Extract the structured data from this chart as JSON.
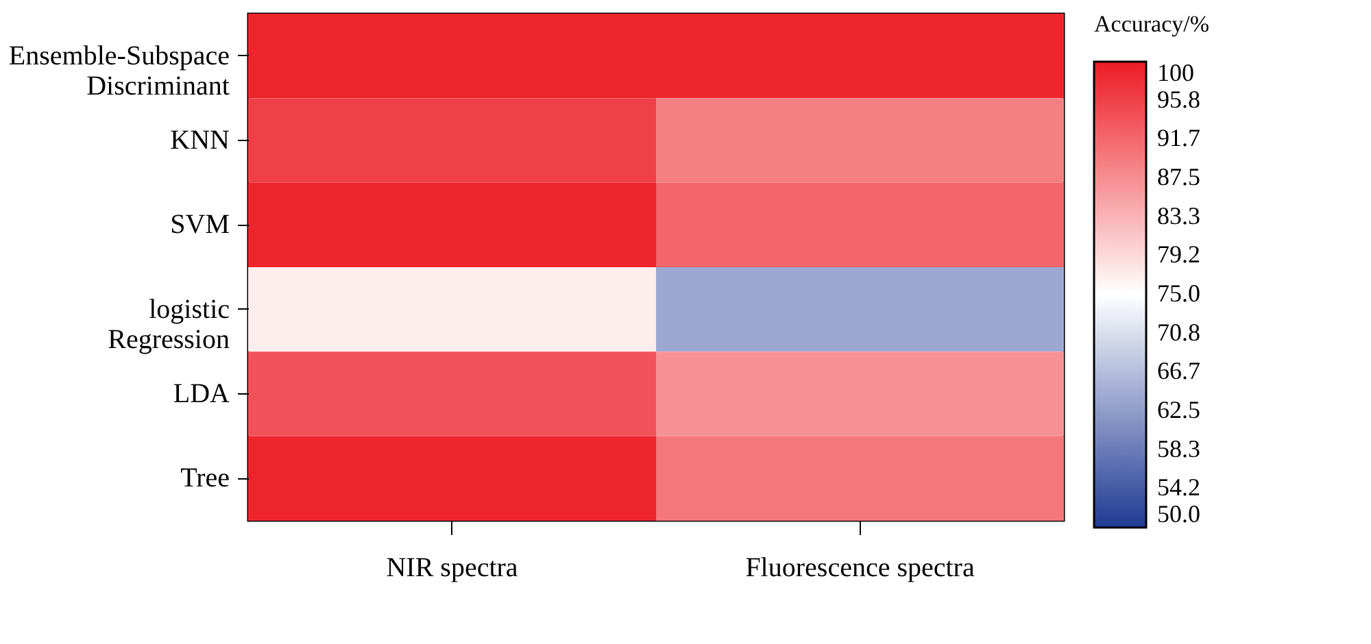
{
  "chart_data": {
    "type": "heatmap",
    "categories": [
      "NIR spectra",
      "Fluorescence spectra"
    ],
    "y_categories": [
      "Ensemble-Subspace Discriminant",
      "KNN",
      "SVM",
      "logistic Regression",
      "LDA",
      "Tree"
    ],
    "cells": [
      [
        99,
        99
      ],
      [
        96,
        89
      ],
      [
        99,
        92
      ],
      [
        77,
        64
      ],
      [
        94,
        87
      ],
      [
        99,
        90
      ]
    ],
    "clabel": "Accuracy/%",
    "clim": [
      50,
      100
    ],
    "cticks": [
      100,
      95.8,
      91.7,
      87.5,
      83.3,
      79.2,
      {
        "value": 75,
        "label": "75.0"
      },
      70.8,
      66.7,
      62.5,
      58.3,
      54.2,
      {
        "value": 50,
        "label": "50.0"
      }
    ]
  }
}
